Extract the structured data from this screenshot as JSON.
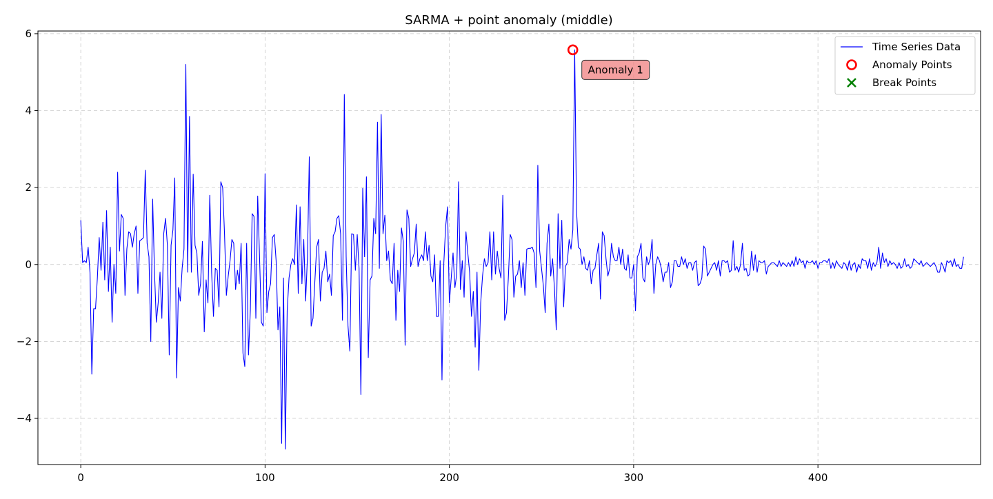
{
  "chart_data": {
    "type": "line",
    "title": "SARMA + point anomaly (middle)",
    "xlabel": "",
    "ylabel": "",
    "xlim": [
      -23.25,
      488.25
    ],
    "ylim": [
      -5.2,
      6.07
    ],
    "x_ticks": [
      0,
      100,
      200,
      300,
      400
    ],
    "y_ticks": [
      -4,
      -2,
      0,
      2,
      4,
      6
    ],
    "x_tick_labels": [
      "0",
      "100",
      "200",
      "300",
      "400"
    ],
    "y_tick_labels": [
      "−4",
      "−2",
      "0",
      "2",
      "4",
      "6"
    ],
    "grid": true,
    "legend_placement": "top-right",
    "legend": [
      {
        "label": "Time Series Data",
        "kind": "line",
        "color": "#0000ff"
      },
      {
        "label": "Anomaly Points",
        "kind": "circle",
        "color": "#ff0000"
      },
      {
        "label": "Break Points",
        "kind": "x",
        "color": "#008000"
      }
    ],
    "series": [
      {
        "name": "Time Series Data",
        "color": "#0000ff",
        "x_start": 0,
        "values": [
          1.15,
          0.05,
          0.1,
          0.05,
          0.45,
          -0.2,
          -2.85,
          -1.15,
          -1.15,
          -0.35,
          0.7,
          -0.15,
          1.1,
          -0.4,
          1.4,
          -0.7,
          0.45,
          -1.5,
          0.0,
          -0.75,
          2.4,
          0.35,
          1.3,
          1.2,
          -0.8,
          0.4,
          0.85,
          0.8,
          0.45,
          0.8,
          1.0,
          -0.75,
          0.62,
          0.65,
          0.7,
          2.45,
          0.55,
          0.2,
          -2.0,
          1.7,
          -0.2,
          -1.5,
          -1.0,
          -0.2,
          -1.4,
          0.8,
          1.2,
          0.5,
          -2.35,
          0.5,
          0.9,
          2.25,
          -2.95,
          -0.6,
          -0.95,
          -0.1,
          0.4,
          5.2,
          -0.2,
          3.85,
          -0.2,
          2.35,
          0.5,
          0.3,
          -0.8,
          -0.5,
          0.6,
          -1.75,
          -0.4,
          -1.0,
          1.8,
          -0.2,
          -1.35,
          -0.1,
          -0.15,
          -1.1,
          2.15,
          2.0,
          0.8,
          -0.8,
          -0.3,
          0.1,
          0.65,
          0.55,
          -0.65,
          -0.15,
          -0.5,
          0.55,
          -2.3,
          -2.65,
          0.55,
          -2.35,
          -1.2,
          1.32,
          1.25,
          -1.4,
          1.78,
          0.2,
          -1.5,
          -1.6,
          2.36,
          -1.25,
          -0.7,
          -0.5,
          0.7,
          0.78,
          0.1,
          -1.7,
          -1.1,
          -4.65,
          -0.35,
          -4.8,
          -1.2,
          -0.35,
          0.0,
          0.15,
          0.0,
          1.55,
          -0.75,
          1.5,
          -0.5,
          0.65,
          -0.95,
          0.2,
          2.8,
          -1.6,
          -1.4,
          -0.45,
          0.45,
          0.65,
          -0.95,
          -0.2,
          -0.1,
          0.35,
          -0.45,
          -0.25,
          -0.8,
          0.75,
          0.85,
          1.2,
          1.27,
          0.8,
          -1.45,
          4.42,
          0.2,
          -1.6,
          -2.25,
          0.8,
          0.78,
          -0.15,
          0.78,
          -0.1,
          -3.38,
          1.98,
          0.2,
          2.28,
          -2.42,
          -0.4,
          -0.3,
          1.2,
          0.8,
          3.7,
          -0.1,
          3.9,
          0.8,
          1.28,
          0.1,
          0.35,
          -0.4,
          -0.5,
          0.55,
          -1.45,
          -0.15,
          -0.7,
          0.95,
          0.6,
          -2.1,
          1.42,
          1.2,
          -0.05,
          0.15,
          0.3,
          1.05,
          -0.05,
          0.15,
          0.25,
          0.1,
          0.85,
          0.1,
          0.5,
          -0.3,
          -0.45,
          0.25,
          -1.35,
          -1.35,
          0.1,
          -3.0,
          0.05,
          1.0,
          1.5,
          -1.0,
          -0.35,
          0.3,
          -0.6,
          -0.25,
          2.15,
          -0.65,
          0.1,
          -0.85,
          0.85,
          0.3,
          -0.2,
          -1.35,
          -0.7,
          -2.15,
          -0.2,
          -2.75,
          -1.0,
          -0.3,
          0.15,
          -0.05,
          0.05,
          0.85,
          -0.4,
          0.85,
          -0.25,
          0.35,
          -0.1,
          -0.35,
          1.8,
          -1.45,
          -1.25,
          -0.35,
          0.78,
          0.65,
          -0.85,
          -0.3,
          -0.25,
          0.1,
          -0.6,
          0.05,
          -0.8,
          0.4,
          0.42,
          0.42,
          0.45,
          0.3,
          -0.6,
          2.58,
          0.35,
          -0.1,
          -0.55,
          -1.25,
          0.55,
          1.05,
          -0.3,
          0.15,
          -0.6,
          -1.7,
          1.32,
          -0.1,
          1.15,
          -1.1,
          -0.05,
          0.05,
          0.65,
          0.4,
          0.9,
          5.58,
          1.4,
          0.45,
          0.4,
          0.0,
          0.2,
          -0.1,
          -0.15,
          0.1,
          -0.5,
          -0.15,
          -0.1,
          0.25,
          0.55,
          -0.9,
          0.85,
          0.75,
          0.15,
          -0.3,
          -0.1,
          0.55,
          0.2,
          0.1,
          0.1,
          0.45,
          0.0,
          0.4,
          -0.1,
          -0.15,
          0.25,
          -0.35,
          -0.35,
          0.0,
          -1.2,
          0.2,
          0.3,
          0.55,
          -0.35,
          -0.45,
          0.2,
          0.0,
          0.15,
          0.65,
          -0.75,
          0.0,
          0.2,
          0.1,
          -0.1,
          -0.45,
          -0.2,
          -0.2,
          0.05,
          -0.6,
          -0.45,
          0.1,
          0.1,
          -0.05,
          -0.05,
          0.2,
          0.0,
          0.15,
          -0.1,
          0.05,
          0.05,
          -0.15,
          0.05,
          0.1,
          -0.55,
          -0.5,
          -0.35,
          0.48,
          0.4,
          -0.3,
          -0.2,
          -0.1,
          0.0,
          0.05,
          -0.15,
          0.1,
          -0.3,
          0.1,
          0.1,
          0.05,
          0.1,
          -0.2,
          -0.15,
          0.62,
          -0.15,
          -0.05,
          -0.2,
          0.0,
          0.55,
          -0.15,
          -0.1,
          -0.3,
          -0.25,
          0.35,
          -0.15,
          0.25,
          -0.2,
          0.1,
          0.05,
          0.05,
          0.1,
          -0.25,
          -0.05,
          0.0,
          0.05,
          0.05,
          0.0,
          -0.05,
          0.1,
          -0.05,
          0.05,
          0.0,
          -0.05,
          0.05,
          -0.05,
          0.1,
          -0.05,
          0.2,
          0.0,
          0.15,
          0.05,
          0.1,
          -0.1,
          0.1,
          0.05,
          0.05,
          0.1,
          0.0,
          0.1,
          -0.1,
          0.05,
          0.05,
          0.1,
          0.1,
          0.05,
          0.15,
          -0.1,
          0.05,
          -0.1,
          0.1,
          0.0,
          -0.05,
          -0.1,
          0.05,
          0.0,
          -0.15,
          0.1,
          -0.15,
          0.0,
          0.05,
          -0.2,
          0.0,
          -0.1,
          0.15,
          0.1,
          0.1,
          -0.1,
          0.15,
          -0.15,
          0.05,
          -0.05,
          0.05,
          0.45,
          -0.1,
          0.3,
          0.05,
          0.15,
          -0.05,
          0.1,
          0.0,
          0.05,
          0.0,
          -0.1,
          0.05,
          -0.1,
          -0.05,
          0.15,
          -0.05,
          0.0,
          -0.1,
          -0.05,
          0.15,
          0.1,
          0.05,
          0.0,
          0.1,
          -0.05,
          0.0,
          0.05,
          0.0,
          -0.05,
          0.0,
          0.05,
          -0.05,
          -0.2,
          -0.2,
          0.05,
          -0.05,
          -0.2,
          0.1,
          0.05,
          0.1,
          -0.05,
          0.15,
          -0.05,
          0.0,
          -0.1,
          -0.1,
          0.2
        ]
      }
    ],
    "anomaly_points": [
      {
        "x": 267,
        "y": 5.58,
        "label": "Anomaly 1"
      }
    ],
    "break_points": []
  }
}
